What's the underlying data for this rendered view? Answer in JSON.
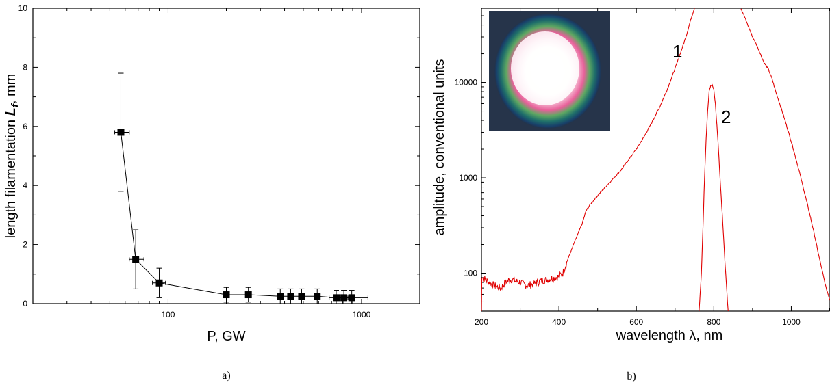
{
  "chart_data": [
    {
      "type": "scatter",
      "caption": "a)",
      "xlabel": "P, GW",
      "ylabel_main": "length filamentation ",
      "ylabel_symbol": "L",
      "ylabel_sub": "f",
      "ylabel_unit": ", mm",
      "xscale": "log",
      "xlim": [
        20,
        2000
      ],
      "ylim": [
        0,
        10
      ],
      "xticks": [
        {
          "v": 100,
          "label": "100"
        },
        {
          "v": 1000,
          "label": "1000"
        }
      ],
      "yticks": [
        {
          "v": 0,
          "label": "0"
        },
        {
          "v": 2,
          "label": "2"
        },
        {
          "v": 4,
          "label": "4"
        },
        {
          "v": 6,
          "label": "6"
        },
        {
          "v": 8,
          "label": "8"
        },
        {
          "v": 10,
          "label": "10"
        }
      ],
      "points": [
        {
          "x": 57,
          "y": 5.8,
          "ylo": 3.8,
          "yhi": 7.8,
          "xlo": 53,
          "xhi": 63
        },
        {
          "x": 68,
          "y": 1.5,
          "ylo": 0.5,
          "yhi": 2.5,
          "xlo": 63,
          "xhi": 75
        },
        {
          "x": 90,
          "y": 0.7,
          "ylo": 0.2,
          "yhi": 1.2,
          "xlo": 83,
          "xhi": 97
        },
        {
          "x": 200,
          "y": 0.3,
          "ylo": 0.05,
          "yhi": 0.55,
          "xlo": 200,
          "xhi": 200
        },
        {
          "x": 260,
          "y": 0.3,
          "ylo": 0.05,
          "yhi": 0.55,
          "xlo": 260,
          "xhi": 260
        },
        {
          "x": 380,
          "y": 0.25,
          "ylo": 0.0,
          "yhi": 0.5,
          "xlo": 380,
          "xhi": 380
        },
        {
          "x": 430,
          "y": 0.25,
          "ylo": 0.0,
          "yhi": 0.5,
          "xlo": 430,
          "xhi": 430
        },
        {
          "x": 490,
          "y": 0.25,
          "ylo": 0.0,
          "yhi": 0.5,
          "xlo": 490,
          "xhi": 490
        },
        {
          "x": 590,
          "y": 0.25,
          "ylo": 0.0,
          "yhi": 0.5,
          "xlo": 590,
          "xhi": 590
        },
        {
          "x": 740,
          "y": 0.2,
          "ylo": 0.0,
          "yhi": 0.45,
          "xlo": 680,
          "xhi": 790
        },
        {
          "x": 810,
          "y": 0.2,
          "ylo": 0.0,
          "yhi": 0.45,
          "xlo": 770,
          "xhi": 850
        },
        {
          "x": 890,
          "y": 0.2,
          "ylo": 0.0,
          "yhi": 0.45,
          "xlo": 830,
          "xhi": 1080
        }
      ],
      "color": "#000000"
    },
    {
      "type": "line",
      "caption": "b)",
      "xlabel": "wavelength λ, nm",
      "ylabel": "amplitude, conventional units",
      "yscale": "log",
      "xlim": [
        200,
        1100
      ],
      "ylim": [
        40,
        60000
      ],
      "xticks": [
        {
          "v": 200,
          "label": "200"
        },
        {
          "v": 400,
          "label": "400"
        },
        {
          "v": 600,
          "label": "600"
        },
        {
          "v": 800,
          "label": "800"
        },
        {
          "v": 1000,
          "label": "1000"
        }
      ],
      "yticks": [
        {
          "v": 100,
          "label": "100"
        },
        {
          "v": 1000,
          "label": "1000"
        },
        {
          "v": 10000,
          "label": "10000"
        }
      ],
      "series": [
        {
          "label": "1",
          "color": "#e00000",
          "points": [
            [
              200,
              40
            ],
            [
              201,
              95
            ],
            [
              210,
              85
            ],
            [
              220,
              80
            ],
            [
              230,
              75
            ],
            [
              240,
              72
            ],
            [
              250,
              70
            ],
            [
              260,
              78
            ],
            [
              270,
              84
            ],
            [
              280,
              86
            ],
            [
              290,
              82
            ],
            [
              300,
              80
            ],
            [
              310,
              76
            ],
            [
              320,
              75
            ],
            [
              330,
              76
            ],
            [
              340,
              78
            ],
            [
              350,
              82
            ],
            [
              360,
              84
            ],
            [
              370,
              86
            ],
            [
              380,
              88
            ],
            [
              390,
              90
            ],
            [
              400,
              92
            ],
            [
              410,
              100
            ],
            [
              420,
              130
            ],
            [
              440,
              210
            ],
            [
              460,
              330
            ],
            [
              470,
              450
            ],
            [
              480,
              520
            ],
            [
              500,
              650
            ],
            [
              520,
              800
            ],
            [
              540,
              980
            ],
            [
              560,
              1200
            ],
            [
              580,
              1550
            ],
            [
              600,
              2000
            ],
            [
              620,
              2700
            ],
            [
              640,
              3800
            ],
            [
              660,
              5500
            ],
            [
              680,
              8500
            ],
            [
              700,
              14000
            ],
            [
              720,
              24000
            ],
            [
              730,
              32000
            ],
            [
              740,
              45000
            ],
            [
              750,
              60000
            ]
          ]
        },
        {
          "label": "1",
          "color": "#e00000",
          "points": [
            [
              870,
              60000
            ],
            [
              880,
              48000
            ],
            [
              890,
              38000
            ],
            [
              900,
              30000
            ],
            [
              910,
              25000
            ],
            [
              920,
              20000
            ],
            [
              930,
              16000
            ],
            [
              940,
              14000
            ],
            [
              950,
              11000
            ],
            [
              960,
              8000
            ],
            [
              970,
              6000
            ],
            [
              980,
              4500
            ],
            [
              990,
              3300
            ],
            [
              1000,
              2400
            ],
            [
              1010,
              1700
            ],
            [
              1020,
              1200
            ],
            [
              1030,
              820
            ],
            [
              1040,
              560
            ],
            [
              1050,
              380
            ],
            [
              1060,
              250
            ],
            [
              1070,
              160
            ],
            [
              1080,
              105
            ],
            [
              1090,
              70
            ],
            [
              1100,
              52
            ]
          ]
        },
        {
          "label": "2",
          "color": "#e00000",
          "points": [
            [
              762,
              40
            ],
            [
              768,
              100
            ],
            [
              772,
              300
            ],
            [
              776,
              1000
            ],
            [
              780,
              2500
            ],
            [
              784,
              5000
            ],
            [
              788,
              8000
            ],
            [
              792,
              9300
            ],
            [
              796,
              9300
            ],
            [
              800,
              8500
            ],
            [
              804,
              6000
            ],
            [
              808,
              3500
            ],
            [
              812,
              2000
            ],
            [
              816,
              1000
            ],
            [
              822,
              400
            ],
            [
              828,
              150
            ],
            [
              834,
              60
            ],
            [
              837,
              40
            ]
          ]
        }
      ]
    }
  ]
}
